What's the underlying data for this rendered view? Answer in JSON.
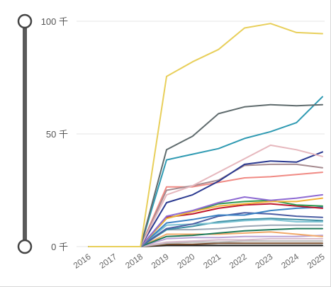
{
  "chart_data": {
    "type": "line",
    "title": "",
    "xlabel": "",
    "ylabel": "",
    "x": [
      "2016",
      "2017",
      "2018",
      "2019",
      "2020",
      "2021",
      "2022",
      "2023",
      "2024",
      "2025"
    ],
    "ylim": [
      0,
      100000
    ],
    "y_ticks": [
      {
        "value": 0,
        "label": "0 千"
      },
      {
        "value": 50000,
        "label": "50 千"
      },
      {
        "value": 100000,
        "label": "100 千"
      }
    ],
    "grid": true,
    "legend": "none",
    "series": [
      {
        "color": "#e8cf5a",
        "values": [
          0,
          0,
          0,
          75500,
          82000,
          87500,
          97000,
          99000,
          95000,
          94500
        ]
      },
      {
        "color": "#5f6b6d",
        "values": [
          0,
          0,
          0,
          43000,
          49000,
          59000,
          62000,
          63000,
          62500,
          63000
        ]
      },
      {
        "color": "#2f9ab2",
        "values": [
          0,
          0,
          0,
          38500,
          41000,
          43500,
          48000,
          51000,
          55000,
          66500
        ]
      },
      {
        "color": "#e6b7bd",
        "values": [
          0,
          0,
          0,
          23000,
          27000,
          33000,
          39000,
          45000,
          43000,
          40000
        ]
      },
      {
        "color": "#2a3990",
        "values": [
          0,
          0,
          0,
          19500,
          23000,
          29000,
          36500,
          38000,
          37500,
          42000
        ]
      },
      {
        "color": "#a58a8f",
        "values": [
          0,
          0,
          0,
          25000,
          27000,
          29500,
          36000,
          36500,
          36500,
          35000
        ]
      },
      {
        "color": "#f08a84",
        "values": [
          0,
          0,
          0,
          26500,
          26500,
          28500,
          30500,
          31000,
          32000,
          33000
        ]
      },
      {
        "color": "#8e6ad3",
        "values": [
          0,
          0,
          0,
          13500,
          16000,
          19500,
          22000,
          20500,
          21500,
          23000
        ]
      },
      {
        "color": "#f2b33a",
        "values": [
          0,
          0,
          0,
          12500,
          15500,
          18000,
          19000,
          20000,
          20000,
          21500
        ]
      },
      {
        "color": "#2f9a52",
        "values": [
          0,
          0,
          0,
          12500,
          15500,
          19000,
          20000,
          20500,
          18500,
          18000
        ]
      },
      {
        "color": "#c0182e",
        "values": [
          0,
          0,
          0,
          13000,
          14500,
          17000,
          18500,
          19000,
          18000,
          17000
        ]
      },
      {
        "color": "#3b82c4",
        "values": [
          0,
          0,
          0,
          10500,
          12000,
          14000,
          14000,
          16000,
          17000,
          17500
        ]
      },
      {
        "color": "#4c5ea3",
        "values": [
          0,
          0,
          0,
          8000,
          10000,
          13500,
          15000,
          14500,
          13500,
          13000
        ]
      },
      {
        "color": "#7fc3d3",
        "values": [
          0,
          0,
          0,
          9500,
          10000,
          10500,
          11500,
          12000,
          11000,
          11000
        ]
      },
      {
        "color": "#3d8fa3",
        "values": [
          0,
          0,
          0,
          7500,
          9000,
          11000,
          12000,
          12500,
          12000,
          11500
        ]
      },
      {
        "color": "#9aa7b5",
        "values": [
          0,
          0,
          0,
          7500,
          7500,
          8000,
          9000,
          9500,
          9500,
          9500
        ]
      },
      {
        "color": "#1f7a5a",
        "values": [
          0,
          0,
          0,
          4500,
          5000,
          6000,
          7000,
          7500,
          8000,
          8000
        ]
      },
      {
        "color": "#f1a96a",
        "values": [
          0,
          0,
          0,
          5500,
          5500,
          5500,
          6000,
          6500,
          5500,
          4500
        ]
      },
      {
        "color": "#b9a2d6",
        "values": [
          0,
          0,
          0,
          3500,
          4000,
          4000,
          4500,
          4500,
          4500,
          5000
        ]
      },
      {
        "color": "#d7b9c9",
        "values": [
          0,
          0,
          0,
          2000,
          2500,
          3000,
          3000,
          3500,
          3500,
          3500
        ]
      },
      {
        "color": "#b8b8b8",
        "values": [
          0,
          0,
          0,
          1500,
          2000,
          2000,
          2500,
          2500,
          2500,
          2500
        ]
      },
      {
        "color": "#7a4e2d",
        "values": [
          0,
          0,
          0,
          1000,
          1000,
          1500,
          1500,
          1500,
          1500,
          1500
        ]
      },
      {
        "color": "#1a1a1a",
        "values": [
          0,
          0,
          0,
          500,
          500,
          500,
          500,
          500,
          500,
          500
        ]
      }
    ],
    "range_slider": {
      "start": 0,
      "end": 100000
    }
  }
}
